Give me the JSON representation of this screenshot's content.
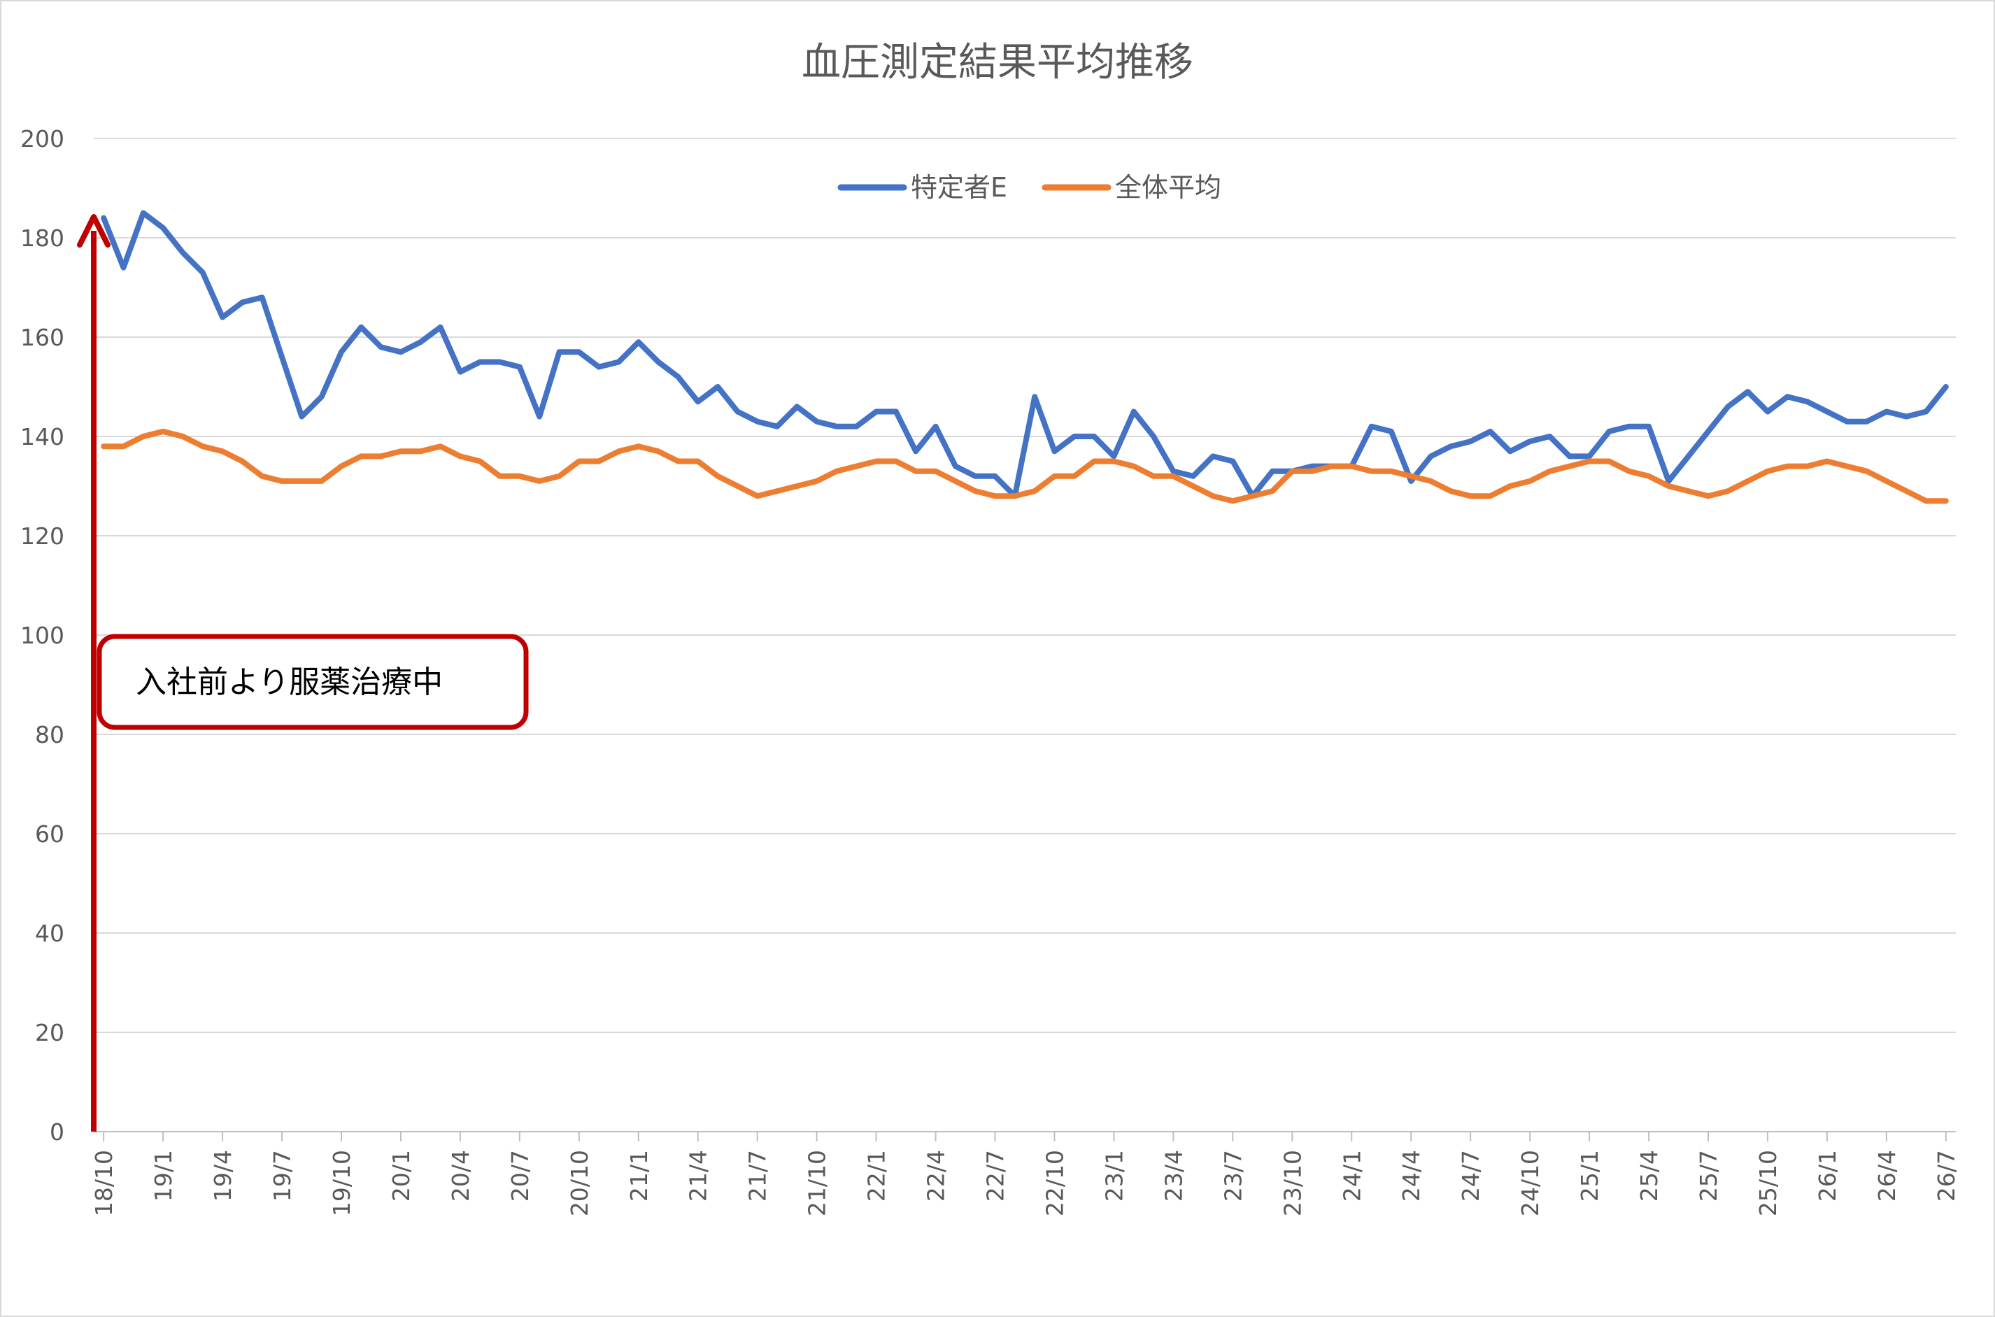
{
  "chart_data": {
    "type": "line",
    "title": "血圧測定結果平均推移",
    "xlabel": "",
    "ylabel": "",
    "ylim": [
      0,
      200
    ],
    "yticks": [
      0,
      20,
      40,
      60,
      80,
      100,
      120,
      140,
      160,
      180,
      200
    ],
    "grid": true,
    "legend_position": "top-center",
    "x_start": "2018-10",
    "x_tick_labels": [
      "18/10",
      "19/1",
      "19/4",
      "19/7",
      "19/10",
      "20/1",
      "20/4",
      "20/7",
      "20/10",
      "21/1",
      "21/4",
      "21/7",
      "21/10",
      "22/1",
      "22/4",
      "22/7",
      "22/10",
      "23/1",
      "23/4",
      "23/7",
      "23/10",
      "24/1",
      "24/4",
      "24/7",
      "24/10",
      "25/1",
      "25/4",
      "25/7",
      "25/10",
      "26/1",
      "26/4",
      "26/7"
    ],
    "series": [
      {
        "name": "特定者E",
        "color": "#4472C4",
        "values": [
          184,
          174,
          185,
          182,
          177,
          173,
          164,
          167,
          168,
          156,
          144,
          148,
          157,
          162,
          158,
          157,
          159,
          162,
          153,
          155,
          155,
          154,
          144,
          157,
          157,
          154,
          155,
          159,
          155,
          152,
          147,
          150,
          145,
          143,
          142,
          146,
          143,
          142,
          142,
          145,
          145,
          137,
          142,
          134,
          132,
          132,
          128,
          148,
          137,
          140,
          140,
          136,
          145,
          140,
          133,
          132,
          136,
          135,
          128,
          133,
          133,
          134,
          134,
          134,
          142,
          141,
          131,
          136,
          138,
          139,
          141,
          137,
          139,
          140,
          136,
          136,
          141,
          142,
          142,
          131,
          136,
          141,
          146,
          149,
          145,
          148,
          147,
          145,
          143,
          143,
          145,
          144,
          145,
          150
        ]
      },
      {
        "name": "全体平均",
        "color": "#ED7D31",
        "values": [
          138,
          138,
          140,
          141,
          140,
          138,
          137,
          135,
          132,
          131,
          131,
          131,
          134,
          136,
          136,
          137,
          137,
          138,
          136,
          135,
          132,
          132,
          131,
          132,
          135,
          135,
          137,
          138,
          137,
          135,
          135,
          132,
          130,
          128,
          129,
          130,
          131,
          133,
          134,
          135,
          135,
          133,
          133,
          131,
          129,
          128,
          128,
          129,
          132,
          132,
          135,
          135,
          134,
          132,
          132,
          130,
          128,
          127,
          128,
          129,
          133,
          133,
          134,
          134,
          133,
          133,
          132,
          131,
          129,
          128,
          128,
          130,
          131,
          133,
          134,
          135,
          135,
          133,
          132,
          130,
          129,
          128,
          129,
          131,
          133,
          134,
          134,
          135,
          134,
          133,
          131,
          129,
          127,
          127
        ]
      }
    ],
    "annotation": {
      "text": "入社前より服薬治療中",
      "arrow_color": "#C00000",
      "box_border_color": "#C00000"
    }
  }
}
